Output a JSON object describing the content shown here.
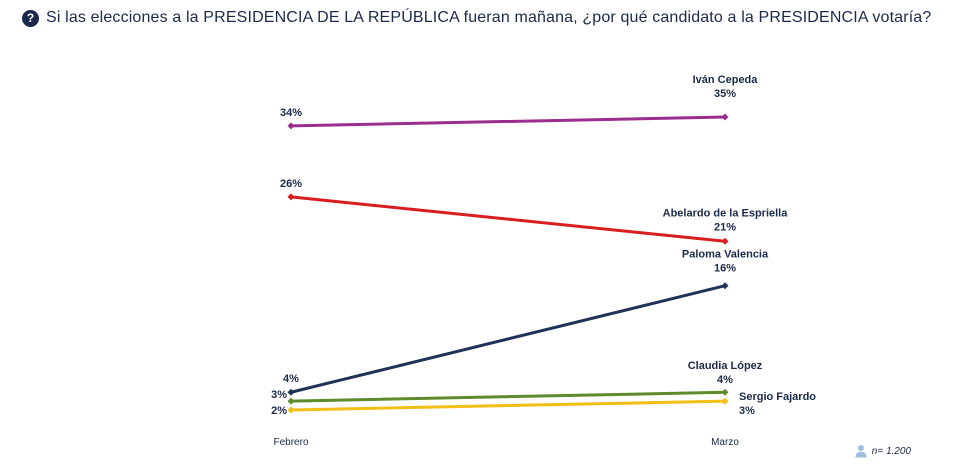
{
  "header": {
    "icon": "question-circle-icon",
    "title": "Si las elecciones a la PRESIDENCIA DE LA REPÚBLICA fueran mañana, ¿por qué candidato a la PRESIDENCIA votaría?"
  },
  "footer": {
    "sample_size": "n= 1.200",
    "icon": "person-icon"
  },
  "chart_data": {
    "type": "line",
    "title": "Si las elecciones a la PRESIDENCIA DE LA REPÚBLICA fueran mañana, ¿por qué candidato a la PRESIDENCIA votaría?",
    "categories": [
      "Febrero",
      "Marzo"
    ],
    "value_suffix": "%",
    "ylim": [
      0,
      40
    ],
    "grid": false,
    "legend": "inline-labels",
    "series": [
      {
        "name": "Iván Cepeda",
        "values": [
          34,
          35
        ],
        "color": "#9b2d8f"
      },
      {
        "name": "Abelardo de la Espriella",
        "values": [
          26,
          21
        ],
        "color": "#d81e1e"
      },
      {
        "name": "Paloma Valencia",
        "values": [
          4,
          16
        ],
        "color": "#1f3358"
      },
      {
        "name": "Claudia López",
        "values": [
          3,
          4
        ],
        "color": "#5e8b2c"
      },
      {
        "name": "Sergio Fajardo",
        "values": [
          2,
          3
        ],
        "color": "#f2bf17"
      }
    ]
  }
}
